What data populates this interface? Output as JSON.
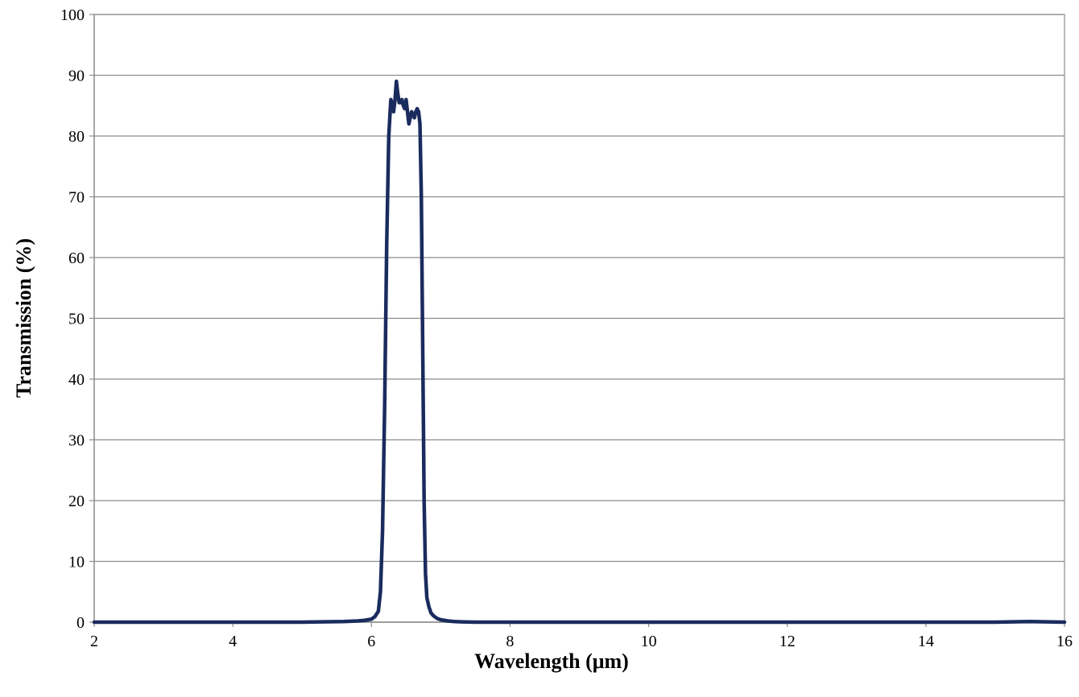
{
  "chart_data": {
    "type": "line",
    "title": "",
    "xlabel": "Wavelength (μm)",
    "ylabel": "Transmission (%)",
    "xlim": [
      2,
      16
    ],
    "ylim": [
      0,
      100
    ],
    "x_ticks": [
      2,
      4,
      6,
      8,
      10,
      12,
      14,
      16
    ],
    "y_ticks": [
      0,
      10,
      20,
      30,
      40,
      50,
      60,
      70,
      80,
      90,
      100
    ],
    "grid": "horizontal",
    "legend": "none",
    "series": [
      {
        "color": "#1a2b5e",
        "x": [
          2.0,
          3.0,
          4.0,
          5.0,
          5.6,
          5.8,
          5.9,
          6.0,
          6.05,
          6.1,
          6.13,
          6.16,
          6.19,
          6.22,
          6.25,
          6.28,
          6.3,
          6.32,
          6.34,
          6.36,
          6.38,
          6.4,
          6.42,
          6.44,
          6.46,
          6.48,
          6.5,
          6.52,
          6.54,
          6.56,
          6.58,
          6.6,
          6.62,
          6.64,
          6.66,
          6.68,
          6.7,
          6.72,
          6.74,
          6.76,
          6.78,
          6.8,
          6.83,
          6.86,
          6.9,
          6.95,
          7.0,
          7.05,
          7.1,
          7.2,
          7.3,
          7.5,
          8.0,
          9.0,
          10.0,
          12.0,
          14.0,
          15.0,
          15.5,
          16.0
        ],
        "values": [
          0,
          0,
          0,
          0,
          0.1,
          0.2,
          0.3,
          0.5,
          0.9,
          1.8,
          5,
          15,
          35,
          62,
          80,
          86,
          85,
          84,
          86,
          89,
          87,
          85.5,
          85.5,
          86,
          85,
          84.5,
          86,
          84,
          82,
          83,
          84,
          83.5,
          83,
          84,
          84.5,
          84,
          82,
          70,
          45,
          20,
          8,
          4,
          2.5,
          1.5,
          1.0,
          0.6,
          0.4,
          0.3,
          0.2,
          0.1,
          0.05,
          0,
          0,
          0,
          0,
          0,
          0,
          0,
          0.1,
          0
        ]
      }
    ]
  }
}
